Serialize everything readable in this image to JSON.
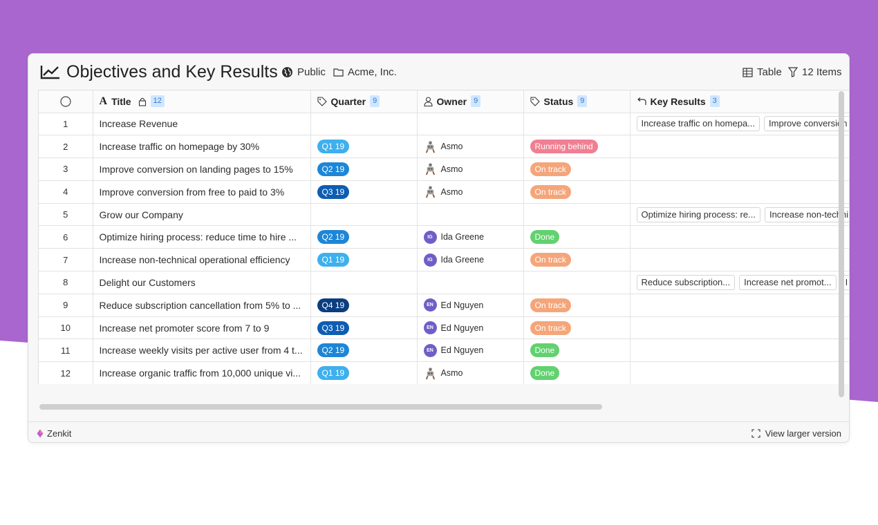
{
  "header": {
    "title": "Objectives and Key Results",
    "visibility": "Public",
    "organization": "Acme, Inc.",
    "view_mode": "Table",
    "items_count": "12 Items"
  },
  "columns": {
    "title": {
      "label": "Title",
      "count": "12"
    },
    "quarter": {
      "label": "Quarter",
      "count": "9"
    },
    "owner": {
      "label": "Owner",
      "count": "9"
    },
    "status": {
      "label": "Status",
      "count": "9"
    },
    "key_results": {
      "label": "Key Results",
      "count": "3"
    }
  },
  "rows": [
    {
      "num": "1",
      "title": "Increase Revenue",
      "quarter": "",
      "owner": "",
      "status": "",
      "kr": [
        "Increase traffic on homepa...",
        "Improve conversion"
      ]
    },
    {
      "num": "2",
      "title": "Increase traffic on homepage by 30%",
      "quarter": "Q1 19",
      "owner": "Asmo",
      "status": "Running behind",
      "kr": []
    },
    {
      "num": "3",
      "title": "Improve conversion on landing pages to 15%",
      "quarter": "Q2 19",
      "owner": "Asmo",
      "status": "On track",
      "kr": []
    },
    {
      "num": "4",
      "title": "Improve conversion from free to paid to 3%",
      "quarter": "Q3 19",
      "owner": "Asmo",
      "status": "On track",
      "kr": []
    },
    {
      "num": "5",
      "title": "Grow our Company",
      "quarter": "",
      "owner": "",
      "status": "",
      "kr": [
        "Optimize hiring process: re...",
        "Increase non-techni"
      ]
    },
    {
      "num": "6",
      "title": "Optimize hiring process: reduce time to hire ...",
      "quarter": "Q2 19",
      "owner": "Ida Greene",
      "owner_initials": "IG",
      "status": "Done",
      "kr": []
    },
    {
      "num": "7",
      "title": "Increase non-technical operational efficiency",
      "quarter": "Q1 19",
      "owner": "Ida Greene",
      "owner_initials": "IG",
      "status": "On track",
      "kr": []
    },
    {
      "num": "8",
      "title": "Delight our Customers",
      "quarter": "",
      "owner": "",
      "status": "",
      "kr": [
        "Reduce subscription...",
        "Increase net promot...",
        "I"
      ]
    },
    {
      "num": "9",
      "title": "Reduce subscription cancellation from 5% to ...",
      "quarter": "Q4 19",
      "owner": "Ed Nguyen",
      "owner_initials": "EN",
      "status": "On track",
      "kr": []
    },
    {
      "num": "10",
      "title": "Increase net promoter score from 7 to 9",
      "quarter": "Q3 19",
      "owner": "Ed Nguyen",
      "owner_initials": "EN",
      "status": "On track",
      "kr": []
    },
    {
      "num": "11",
      "title": "Increase weekly visits per active user from 4 t...",
      "quarter": "Q2 19",
      "owner": "Ed Nguyen",
      "owner_initials": "EN",
      "status": "Done",
      "kr": []
    },
    {
      "num": "12",
      "title": "Increase organic traffic from 10,000 unique vi...",
      "quarter": "Q1 19",
      "owner": "Asmo",
      "status": "Done",
      "kr": []
    }
  ],
  "colors": {
    "background_purple": "#a966cf",
    "q1": "#3eb0ee",
    "q2": "#1e86d6",
    "q3": "#0d5db3",
    "q4": "#0b3d80",
    "running_behind": "#f07f92",
    "on_track": "#f5a57a",
    "done": "#62d16f",
    "avatar": "#6e5fc7"
  },
  "footer": {
    "brand": "Zenkit",
    "view_larger": "View larger version"
  }
}
